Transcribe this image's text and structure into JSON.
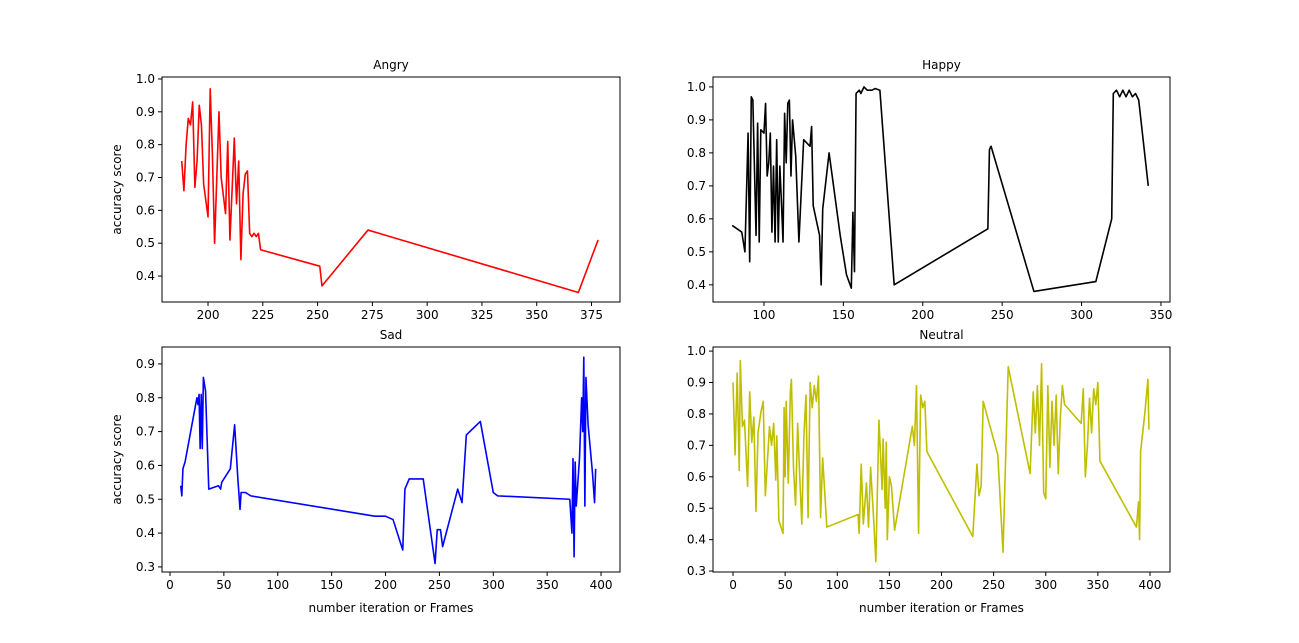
{
  "chart_data": [
    {
      "type": "line",
      "title": "Angry",
      "ylabel": "accuracy score",
      "x": [
        188,
        189,
        190,
        191,
        192,
        193,
        194,
        195,
        196,
        197,
        198,
        200,
        201,
        202,
        203,
        205,
        206,
        208,
        209,
        210,
        212,
        213,
        214,
        215,
        216,
        217,
        218,
        219,
        220,
        221,
        222,
        223,
        224,
        251,
        252,
        273,
        369,
        378
      ],
      "series": [
        {
          "color": "#ff0000",
          "values": [
            0.75,
            0.66,
            0.8,
            0.88,
            0.86,
            0.93,
            0.67,
            0.75,
            0.92,
            0.86,
            0.68,
            0.58,
            0.97,
            0.77,
            0.5,
            0.9,
            0.7,
            0.59,
            0.81,
            0.51,
            0.82,
            0.62,
            0.75,
            0.45,
            0.65,
            0.71,
            0.72,
            0.53,
            0.52,
            0.53,
            0.52,
            0.53,
            0.48,
            0.43,
            0.37,
            0.54,
            0.35,
            0.51
          ]
        }
      ],
      "xlim": [
        179,
        388
      ],
      "ylim": [
        0.321,
        1.006
      ],
      "xticks": [
        200,
        225,
        250,
        275,
        300,
        325,
        350,
        375
      ],
      "yticks": [
        0.4,
        0.5,
        0.6,
        0.7,
        0.8,
        0.9,
        {
          "value": 1,
          "label": "1.0"
        }
      ]
    },
    {
      "type": "line",
      "title": "Happy",
      "x": [
        80,
        86,
        88,
        90,
        91,
        92,
        93,
        95,
        96,
        97,
        98,
        100,
        101,
        102,
        103,
        104,
        105,
        106,
        107,
        108,
        109,
        110,
        111,
        112,
        113,
        114,
        115,
        116,
        117,
        118,
        120,
        122,
        125,
        129,
        130,
        131,
        135,
        136,
        137,
        141,
        148,
        152,
        155,
        156,
        157,
        158,
        160,
        161,
        163,
        165,
        168,
        170,
        173,
        182,
        241,
        242,
        243,
        270,
        309,
        319,
        320,
        322,
        324,
        326,
        328,
        330,
        332,
        334,
        336,
        342
      ],
      "series": [
        {
          "color": "#000000",
          "values": [
            0.58,
            0.56,
            0.5,
            0.86,
            0.47,
            0.97,
            0.96,
            0.55,
            0.89,
            0.53,
            0.87,
            0.86,
            0.95,
            0.73,
            0.77,
            0.86,
            0.56,
            0.76,
            0.53,
            0.84,
            0.53,
            0.76,
            0.65,
            0.53,
            0.92,
            0.77,
            0.95,
            0.96,
            0.73,
            0.9,
            0.79,
            0.53,
            0.84,
            0.82,
            0.88,
            0.64,
            0.55,
            0.4,
            0.63,
            0.8,
            0.55,
            0.43,
            0.39,
            0.62,
            0.44,
            0.98,
            0.99,
            0.98,
            1.0,
            0.99,
            0.99,
            0.995,
            0.99,
            0.4,
            0.57,
            0.81,
            0.82,
            0.38,
            0.41,
            0.6,
            0.98,
            0.99,
            0.97,
            0.99,
            0.97,
            0.99,
            0.97,
            0.98,
            0.96,
            0.7
          ]
        }
      ],
      "xlim": [
        67.9,
        355.7
      ],
      "ylim": [
        0.348,
        1.03
      ],
      "xticks": [
        100,
        150,
        200,
        250,
        300,
        350
      ],
      "yticks": [
        0.4,
        0.5,
        0.6,
        0.7,
        0.8,
        0.9,
        {
          "value": 1,
          "label": "1.0"
        }
      ]
    },
    {
      "type": "line",
      "title": "Sad",
      "ylabel": "accuracy score",
      "xlabel": "number iteration or Frames",
      "x": [
        10,
        11,
        12,
        14,
        25,
        26,
        27,
        28,
        29,
        30,
        31,
        33,
        36,
        45,
        47,
        48,
        56,
        60,
        63,
        65,
        66,
        70,
        75,
        190,
        200,
        207,
        216,
        218,
        222,
        235,
        246,
        248,
        251,
        253,
        267,
        271,
        275,
        288,
        300,
        304,
        371,
        373,
        374,
        375,
        376,
        377,
        380,
        382,
        383,
        384,
        385,
        386,
        388,
        392,
        394,
        395
      ],
      "series": [
        {
          "color": "#0000ff",
          "values": [
            0.54,
            0.51,
            0.59,
            0.61,
            0.8,
            0.78,
            0.81,
            0.65,
            0.81,
            0.65,
            0.86,
            0.82,
            0.53,
            0.54,
            0.53,
            0.55,
            0.59,
            0.72,
            0.56,
            0.47,
            0.52,
            0.52,
            0.51,
            0.45,
            0.45,
            0.44,
            0.35,
            0.53,
            0.56,
            0.56,
            0.31,
            0.41,
            0.41,
            0.36,
            0.53,
            0.49,
            0.69,
            0.73,
            0.52,
            0.51,
            0.5,
            0.4,
            0.62,
            0.33,
            0.61,
            0.48,
            0.62,
            0.8,
            0.7,
            0.92,
            0.48,
            0.86,
            0.72,
            0.58,
            0.49,
            0.59
          ]
        }
      ],
      "xlim": [
        -7.4,
        417.6
      ],
      "ylim": [
        0.285,
        0.95
      ],
      "xticks": [
        0,
        50,
        100,
        150,
        200,
        250,
        300,
        350,
        400
      ],
      "yticks": [
        0.3,
        0.4,
        0.5,
        0.6,
        0.7,
        0.8,
        0.9
      ]
    },
    {
      "type": "line",
      "title": "Neutral",
      "xlabel": "number iteration or Frames",
      "x": [
        0,
        2,
        4,
        6,
        7,
        9,
        11,
        14,
        16,
        18,
        20,
        22,
        24,
        27,
        29,
        31,
        33,
        35,
        37,
        39,
        41,
        42,
        44,
        46,
        48,
        49,
        50,
        51,
        53,
        55,
        56,
        58,
        60,
        62,
        64,
        66,
        68,
        70,
        72,
        74,
        76,
        78,
        80,
        82,
        84,
        86,
        88,
        90,
        120,
        121,
        123,
        125,
        128,
        130,
        132,
        135,
        137,
        140,
        143,
        144,
        146,
        147,
        148,
        150,
        152,
        155,
        172,
        174,
        176,
        178,
        180,
        182,
        184,
        186,
        230,
        234,
        236,
        238,
        240,
        254,
        259,
        264,
        285,
        288,
        290,
        292,
        294,
        296,
        298,
        300,
        302,
        304,
        306,
        308,
        310,
        312,
        314,
        316,
        318,
        334,
        336,
        338,
        340,
        342,
        344,
        346,
        348,
        350,
        352,
        387,
        389,
        390,
        391,
        395,
        398,
        399
      ],
      "series": [
        {
          "color": "#bfbf00",
          "values": [
            0.9,
            0.67,
            0.93,
            0.62,
            0.97,
            0.76,
            0.78,
            0.57,
            0.87,
            0.71,
            0.79,
            0.49,
            0.74,
            0.81,
            0.84,
            0.54,
            0.65,
            0.76,
            0.7,
            0.77,
            0.59,
            0.73,
            0.46,
            0.44,
            0.42,
            0.82,
            0.6,
            0.84,
            0.58,
            0.87,
            0.91,
            0.63,
            0.51,
            0.77,
            0.6,
            0.45,
            0.73,
            0.86,
            0.47,
            0.9,
            0.82,
            0.89,
            0.84,
            0.92,
            0.47,
            0.66,
            0.55,
            0.44,
            0.48,
            0.42,
            0.64,
            0.45,
            0.58,
            0.44,
            0.63,
            0.46,
            0.33,
            0.78,
            0.56,
            0.72,
            0.5,
            0.71,
            0.4,
            0.6,
            0.57,
            0.43,
            0.76,
            0.7,
            0.89,
            0.42,
            0.86,
            0.82,
            0.84,
            0.68,
            0.41,
            0.64,
            0.54,
            0.57,
            0.84,
            0.67,
            0.36,
            0.95,
            0.61,
            0.87,
            0.74,
            0.89,
            0.7,
            0.96,
            0.55,
            0.53,
            0.89,
            0.63,
            0.84,
            0.7,
            0.86,
            0.61,
            0.79,
            0.89,
            0.83,
            0.77,
            0.88,
            0.6,
            0.7,
            0.85,
            0.74,
            0.88,
            0.83,
            0.9,
            0.65,
            0.44,
            0.52,
            0.4,
            0.68,
            0.8,
            0.91,
            0.75
          ]
        }
      ],
      "xlim": [
        -19.2,
        419.2
      ],
      "ylim": [
        0.297,
        1.013
      ],
      "xticks": [
        0,
        50,
        100,
        150,
        200,
        250,
        300,
        350,
        400
      ],
      "yticks": [
        0.3,
        0.4,
        0.5,
        0.6,
        0.7,
        0.8,
        0.9,
        {
          "value": 1,
          "label": "1.0"
        }
      ]
    }
  ]
}
